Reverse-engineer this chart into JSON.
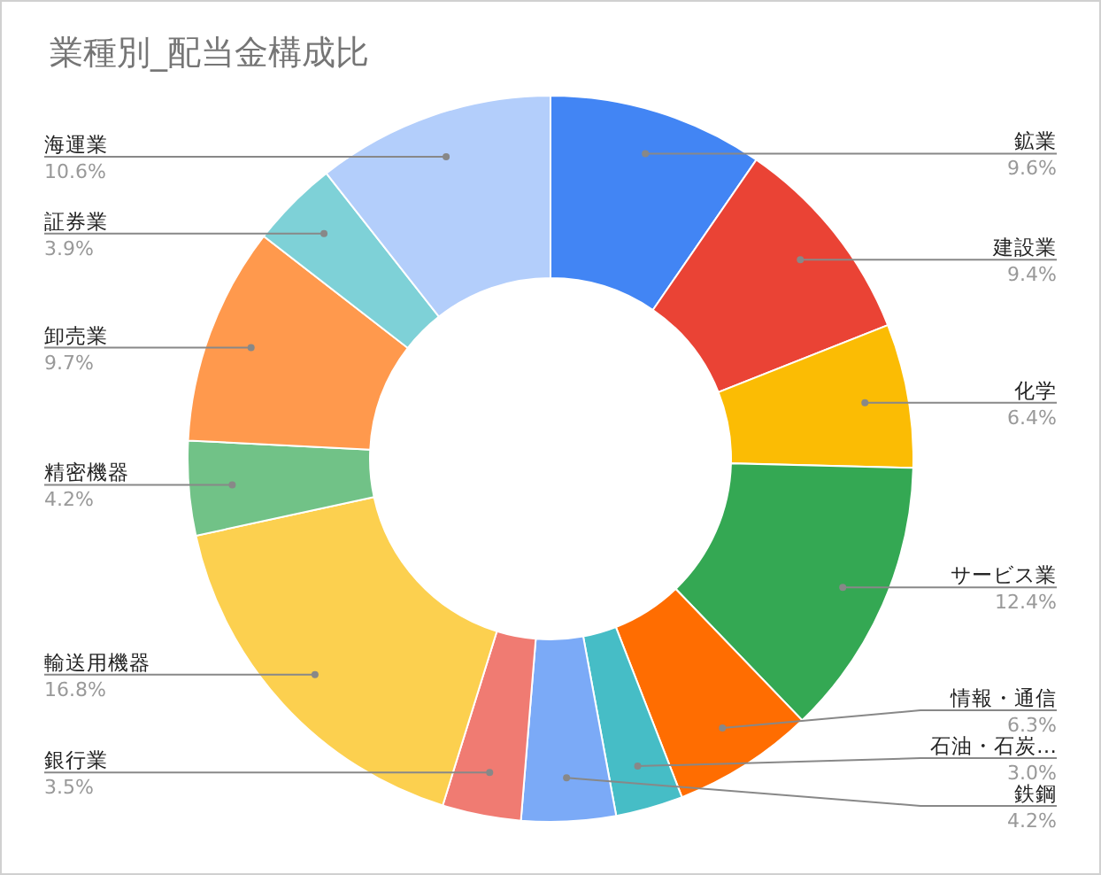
{
  "chart_data": {
    "type": "donut",
    "title": "業種別_配当金構成比",
    "categories": [
      "鉱業",
      "建設業",
      "化学",
      "サービス業",
      "情報・通信",
      "石油・石炭…",
      "鉄鋼",
      "銀行業",
      "輸送用機器",
      "精密機器",
      "卸売業",
      "証券業",
      "海運業"
    ],
    "values": [
      9.6,
      9.4,
      6.4,
      12.4,
      6.3,
      3.0,
      4.2,
      3.5,
      16.8,
      4.2,
      9.7,
      3.9,
      10.6
    ],
    "value_labels": [
      "9.6%",
      "9.4%",
      "6.4%",
      "12.4%",
      "6.3%",
      "3.0%",
      "4.2%",
      "3.5%",
      "16.8%",
      "4.2%",
      "9.7%",
      "3.9%",
      "10.6%"
    ],
    "colors": [
      "#4285f4",
      "#ea4335",
      "#fbbc04",
      "#34a853",
      "#ff6d01",
      "#46bdc6",
      "#7baaf7",
      "#f07b72",
      "#fcd04f",
      "#71c287",
      "#ff994d",
      "#7ed1d7",
      "#b3cefb"
    ]
  }
}
